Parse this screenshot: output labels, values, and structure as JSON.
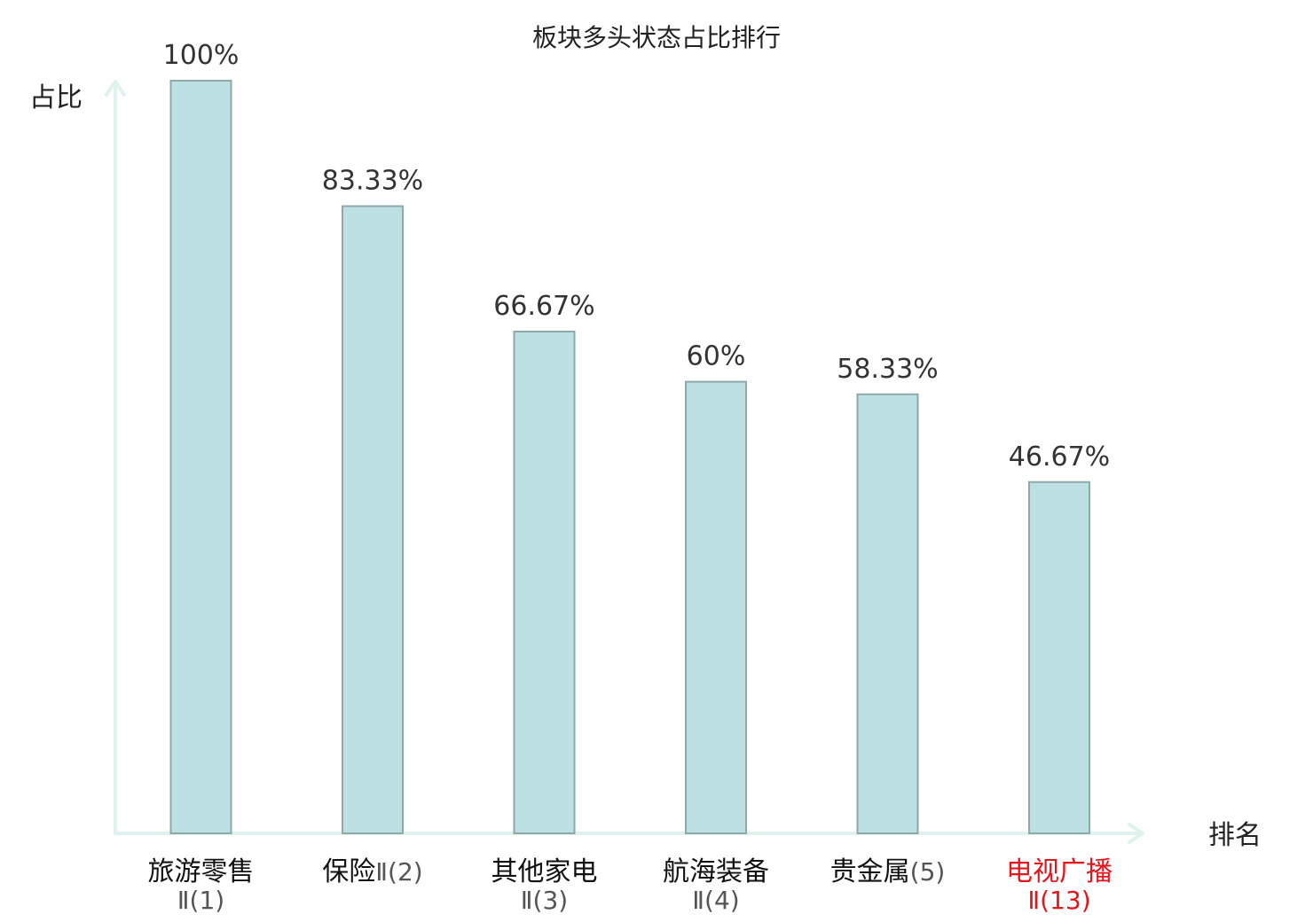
{
  "chart_data": {
    "type": "bar",
    "title": "板块多头状态占比排行",
    "ylabel": "占比",
    "xlabel": "排名",
    "ylim": [
      0,
      100
    ],
    "grid": false,
    "categories": [
      {
        "name": "旅游零售",
        "rank": "Ⅱ(1)",
        "highlight": false
      },
      {
        "name": "保险",
        "rank": "Ⅱ(2)",
        "highlight": false
      },
      {
        "name": "其他家电",
        "rank": "Ⅱ(3)",
        "highlight": false
      },
      {
        "name": "航海装备",
        "rank": "Ⅱ(4)",
        "highlight": false
      },
      {
        "name": "贵金属",
        "rank": "(5)",
        "highlight": false
      },
      {
        "name": "电视广播",
        "rank": "Ⅱ(13)",
        "highlight": true
      }
    ],
    "values": [
      100,
      83.33,
      66.67,
      60,
      58.33,
      46.67
    ],
    "value_labels": [
      "100%",
      "83.33%",
      "66.67%",
      "60%",
      "58.33%",
      "46.67%"
    ],
    "colors": {
      "bar_fill": "#bde0e3",
      "bar_stroke": "#8fa9ab",
      "axis": "#dff2ee",
      "highlight": "#e8141b"
    }
  }
}
